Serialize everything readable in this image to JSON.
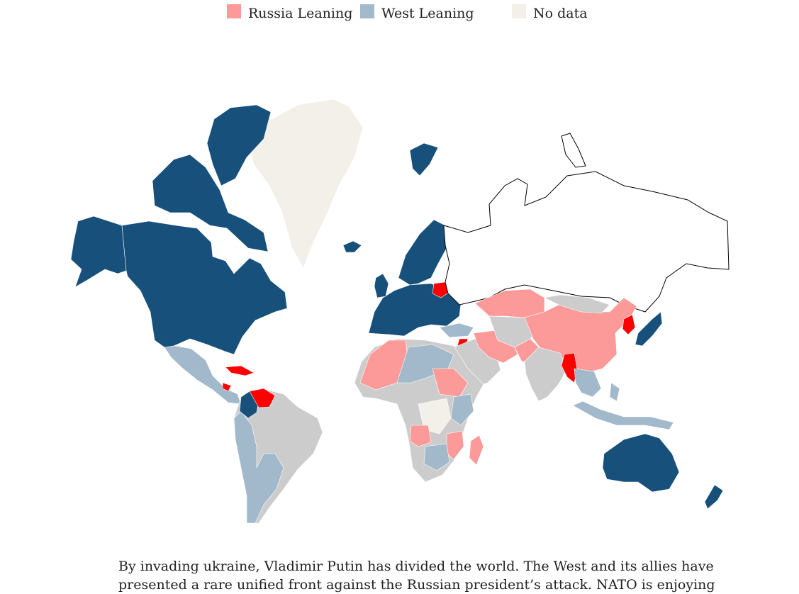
{
  "legend": {
    "items": [
      {
        "label": "Russia Leaning",
        "color": "#fb9a99"
      },
      {
        "label": "West Leaning",
        "color": "#a1b9ca"
      },
      {
        "label": "No data",
        "color": "#f2f0e9"
      }
    ]
  },
  "colors": {
    "strong_west": "#17507b",
    "west_leaning": "#a1b9ca",
    "russia_leaning": "#fb9a99",
    "strong_russia": "#fe0000",
    "neutral": "#cccccc",
    "no_data": "#f2f0e9",
    "russia_outline": "#000000"
  },
  "caption": {
    "line1": "By invading ukraine, Vladimir Putin has divided the world. The West and its allies have",
    "line2": "presented a rare unified front against the Russian president’s attack. NATO is enjoying"
  }
}
